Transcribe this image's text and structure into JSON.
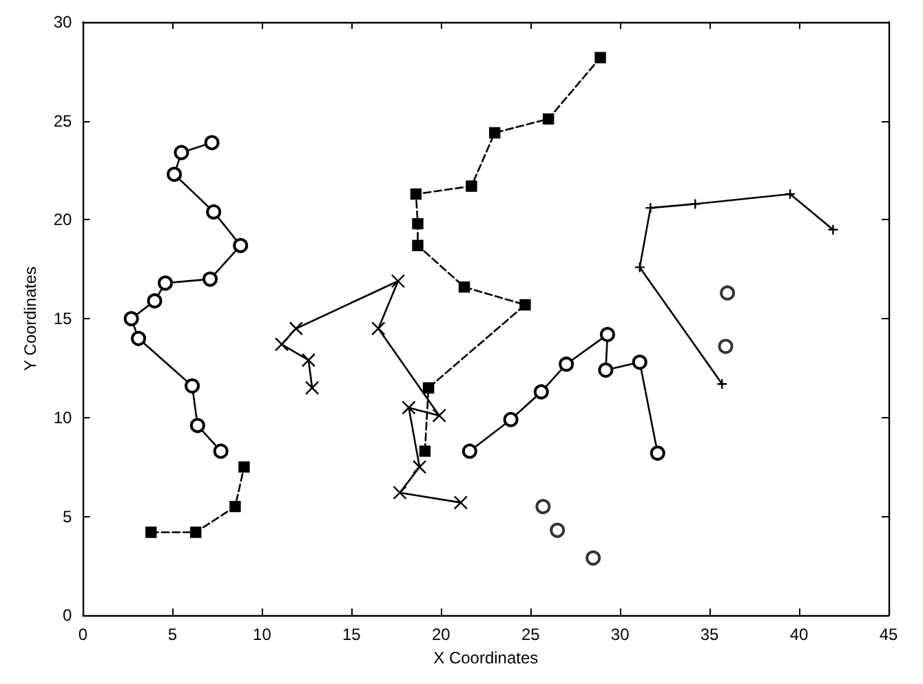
{
  "chart_data": {
    "type": "line",
    "xlabel": "X Coordinates",
    "ylabel": "Y Coordinates",
    "xlim": [
      0,
      45
    ],
    "xticks": [
      0,
      5,
      10,
      15,
      20,
      25,
      30,
      35,
      40,
      45
    ],
    "ylim": [
      0,
      30
    ],
    "yticks": [
      0,
      5,
      10,
      15,
      20,
      25,
      30
    ],
    "grid": false,
    "series": [
      {
        "color": "#000000",
        "marker": "circle",
        "line_style": "solid",
        "x": [
          7.2,
          5.5,
          5.1,
          7.3,
          8.8,
          7.1,
          4.6,
          4.0,
          2.7,
          3.1,
          6.1,
          6.4,
          7.7
        ],
        "values": [
          23.9,
          23.4,
          22.3,
          20.4,
          18.7,
          17.0,
          16.8,
          15.9,
          15.0,
          14.0,
          11.6,
          9.6,
          8.3
        ]
      },
      {
        "color": "#000000",
        "marker": "square",
        "line_style": "dashed",
        "x": [
          3.8,
          6.3,
          8.5,
          9.0
        ],
        "values": [
          4.2,
          4.2,
          5.5,
          7.5
        ]
      },
      {
        "color": "#000000",
        "marker": "cross",
        "line_style": "solid",
        "x": [
          12.8,
          12.6,
          11.1,
          11.9,
          17.6,
          16.5,
          19.9,
          18.2,
          18.8,
          17.7,
          21.1
        ],
        "values": [
          11.5,
          12.9,
          13.7,
          14.5,
          16.9,
          14.5,
          10.1,
          10.5,
          7.5,
          6.2,
          5.7
        ]
      },
      {
        "color": "#000000",
        "marker": "square",
        "line_style": "dashed",
        "x": [
          19.1,
          19.3,
          24.7,
          21.3,
          18.7,
          18.7,
          18.6,
          21.7,
          23.0,
          26.0,
          28.9
        ],
        "values": [
          8.3,
          11.5,
          15.7,
          16.6,
          18.7,
          19.8,
          21.3,
          21.7,
          24.4,
          25.1,
          28.2
        ]
      },
      {
        "color": "#000000",
        "marker": "plus",
        "line_style": "solid",
        "x": [
          35.7,
          31.1,
          31.7,
          34.2,
          39.5,
          41.9
        ],
        "values": [
          11.7,
          17.6,
          20.6,
          20.8,
          21.3,
          19.5
        ]
      },
      {
        "color": "#000000",
        "marker": "circle",
        "line_style": "solid",
        "x": [
          21.6,
          23.9,
          25.6,
          27.0,
          29.3,
          29.2,
          31.1,
          32.1
        ],
        "values": [
          8.3,
          9.9,
          11.3,
          12.7,
          14.2,
          12.4,
          12.8,
          8.2
        ]
      },
      {
        "type": "scatter",
        "color": "#000000",
        "marker": "circle",
        "x": [
          36.0,
          35.9,
          25.7,
          26.5,
          28.5
        ],
        "values": [
          16.3,
          13.6,
          5.5,
          4.3,
          2.9
        ]
      }
    ]
  }
}
